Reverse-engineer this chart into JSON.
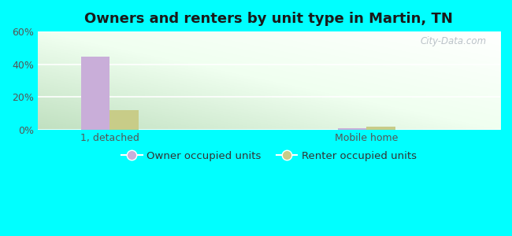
{
  "title": "Owners and renters by unit type in Martin, TN",
  "categories": [
    "1, detached",
    "Mobile home"
  ],
  "owner_values": [
    44.5,
    0.8
  ],
  "renter_values": [
    12.0,
    1.5
  ],
  "owner_color": "#c9aed9",
  "renter_color": "#c8cc88",
  "ylim": [
    0,
    0.6
  ],
  "yticks": [
    0.0,
    0.2,
    0.4,
    0.6
  ],
  "ytick_labels": [
    "0%",
    "20%",
    "40%",
    "60%"
  ],
  "outer_bg": "#00ffff",
  "plot_bg_left": "#c8e8c8",
  "plot_bg_right": "#eefff0",
  "watermark": "City-Data.com",
  "bar_width": 0.28,
  "group_positions": [
    1.0,
    3.5
  ],
  "xlim": [
    0.3,
    4.8
  ],
  "legend_labels": [
    "Owner occupied units",
    "Renter occupied units"
  ],
  "title_fontsize": 13,
  "tick_fontsize": 9
}
